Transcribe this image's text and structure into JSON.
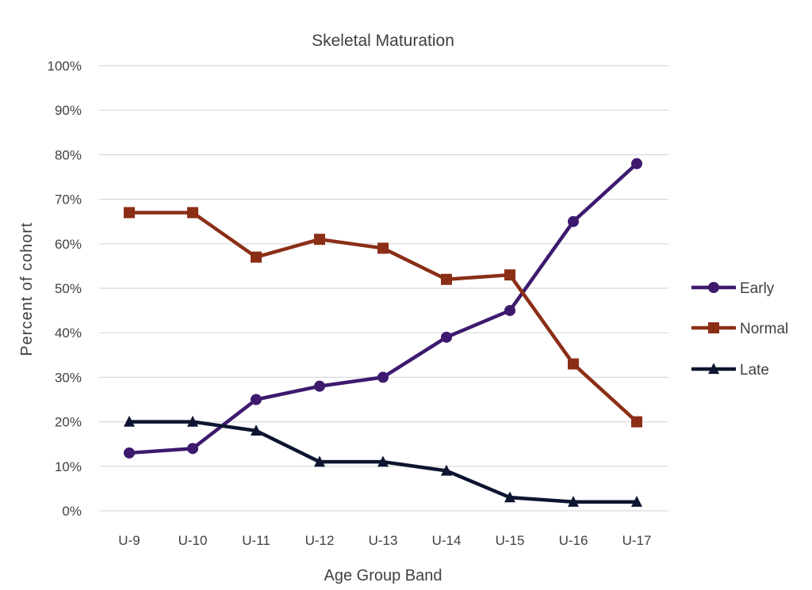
{
  "chart_data": {
    "type": "line",
    "title": "Skeletal Maturation",
    "xlabel": "Age Group Band",
    "ylabel": "Percent of cohort",
    "categories": [
      "U-9",
      "U-10",
      "U-11",
      "U-12",
      "U-13",
      "U-14",
      "U-15",
      "U-16",
      "U-17"
    ],
    "ylim": [
      0,
      100
    ],
    "y_ticks": [
      "0%",
      "10%",
      "20%",
      "30%",
      "40%",
      "50%",
      "60%",
      "70%",
      "80%",
      "90%",
      "100%"
    ],
    "grid": "horizontal",
    "legend_position": "right",
    "series": [
      {
        "name": "Early",
        "marker": "circle",
        "color": "#3d1a6e",
        "values": [
          13,
          14,
          25,
          28,
          30,
          39,
          45,
          65,
          78
        ]
      },
      {
        "name": "Normal",
        "marker": "square",
        "color": "#8b2e16",
        "values": [
          67,
          67,
          57,
          61,
          59,
          52,
          53,
          33,
          20
        ]
      },
      {
        "name": "Late",
        "marker": "triangle",
        "color": "#0d1530",
        "values": [
          20,
          20,
          18,
          11,
          11,
          9,
          3,
          2,
          2
        ]
      }
    ]
  }
}
